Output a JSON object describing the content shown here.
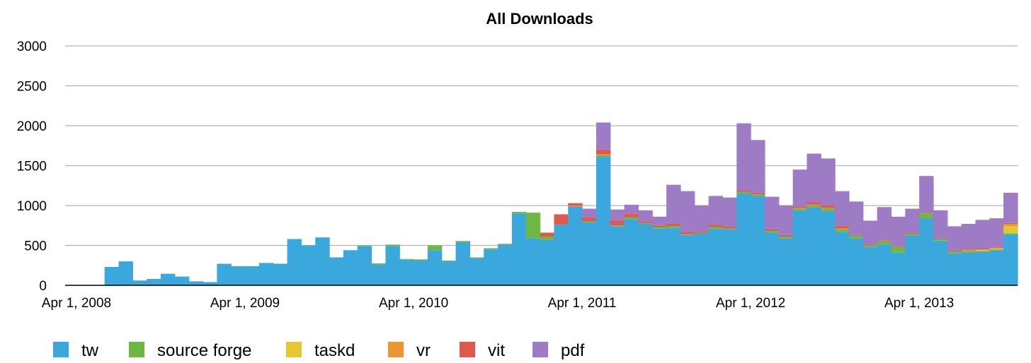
{
  "chart_data": {
    "type": "bar",
    "stacked": true,
    "title": "All Downloads",
    "xlabel": "",
    "ylabel": "",
    "ylim": [
      0,
      3000
    ],
    "yticks": [
      0,
      500,
      1000,
      1500,
      2000,
      2500,
      3000
    ],
    "ytick_labels": [
      "0",
      "500",
      "1000",
      "1500",
      "2000",
      "2500",
      "3000"
    ],
    "xtick_labels": [
      "Apr 1, 2008",
      "Apr 1, 2009",
      "Apr 1, 2010",
      "Apr 1, 2011",
      "Apr 1, 2012",
      "Apr 1, 2013"
    ],
    "xtick_positions": [
      0,
      12,
      24,
      36,
      48,
      60
    ],
    "grid": true,
    "legend_position": "bottom",
    "colors": {
      "tw": "#3aa8dc",
      "source forge": "#6cb842",
      "taskd": "#e2c931",
      "vr": "#ec9535",
      "vit": "#df5a4b",
      "pdf": "#9d7cc5"
    },
    "series": [
      {
        "name": "tw",
        "values": [
          0,
          0,
          230,
          300,
          60,
          80,
          145,
          110,
          50,
          40,
          270,
          240,
          240,
          280,
          270,
          580,
          500,
          600,
          350,
          440,
          490,
          260,
          490,
          320,
          310,
          440,
          300,
          540,
          340,
          450,
          510,
          900,
          590,
          570,
          760,
          990,
          790,
          1610,
          740,
          830,
          770,
          710,
          720,
          630,
          650,
          710,
          700,
          1150,
          1120,
          660,
          590,
          940,
          980,
          930,
          670,
          590,
          480,
          510,
          410,
          620,
          840,
          560,
          400,
          410,
          420,
          440,
          640
        ]
      },
      {
        "name": "source forge",
        "values": [
          0,
          0,
          0,
          0,
          0,
          0,
          0,
          0,
          0,
          0,
          0,
          0,
          0,
          0,
          0,
          0,
          0,
          0,
          0,
          0,
          10,
          15,
          20,
          10,
          15,
          60,
          10,
          15,
          10,
          15,
          10,
          20,
          320,
          40,
          0,
          0,
          10,
          20,
          10,
          20,
          10,
          20,
          20,
          10,
          10,
          20,
          10,
          20,
          20,
          20,
          20,
          20,
          20,
          30,
          30,
          30,
          20,
          40,
          70,
          20,
          60,
          20,
          20,
          20,
          10,
          10,
          10
        ]
      },
      {
        "name": "taskd",
        "values": [
          0,
          0,
          0,
          0,
          0,
          0,
          0,
          0,
          0,
          0,
          0,
          0,
          0,
          0,
          0,
          0,
          0,
          0,
          0,
          0,
          0,
          0,
          0,
          0,
          0,
          0,
          0,
          0,
          0,
          0,
          0,
          0,
          0,
          0,
          0,
          0,
          0,
          0,
          0,
          0,
          0,
          0,
          0,
          0,
          0,
          0,
          0,
          0,
          0,
          0,
          0,
          0,
          0,
          0,
          0,
          0,
          0,
          0,
          0,
          0,
          0,
          0,
          0,
          0,
          10,
          10,
          90
        ]
      },
      {
        "name": "vr",
        "values": [
          0,
          0,
          0,
          0,
          0,
          0,
          0,
          0,
          0,
          0,
          0,
          0,
          0,
          0,
          0,
          0,
          0,
          0,
          0,
          0,
          0,
          0,
          0,
          0,
          0,
          0,
          0,
          0,
          0,
          0,
          0,
          0,
          0,
          0,
          0,
          10,
          0,
          10,
          0,
          0,
          0,
          0,
          0,
          0,
          0,
          0,
          0,
          0,
          0,
          0,
          0,
          10,
          10,
          10,
          10,
          0,
          0,
          0,
          0,
          0,
          0,
          0,
          0,
          10,
          10,
          10,
          30
        ]
      },
      {
        "name": "vit",
        "values": [
          0,
          0,
          0,
          0,
          0,
          0,
          0,
          0,
          0,
          0,
          0,
          0,
          0,
          0,
          0,
          0,
          0,
          0,
          0,
          0,
          0,
          0,
          0,
          0,
          0,
          0,
          0,
          0,
          0,
          0,
          0,
          0,
          0,
          50,
          130,
          30,
          50,
          60,
          60,
          50,
          20,
          20,
          30,
          30,
          20,
          30,
          20,
          20,
          20,
          20,
          20,
          20,
          30,
          30,
          30,
          10,
          10,
          10,
          10,
          10,
          10,
          10,
          10,
          10,
          10,
          10,
          10
        ]
      },
      {
        "name": "pdf",
        "values": [
          0,
          0,
          0,
          0,
          0,
          0,
          0,
          0,
          0,
          0,
          0,
          0,
          0,
          0,
          0,
          0,
          0,
          0,
          0,
          0,
          0,
          0,
          0,
          0,
          0,
          0,
          0,
          0,
          0,
          0,
          0,
          0,
          0,
          0,
          0,
          0,
          110,
          340,
          140,
          110,
          140,
          110,
          490,
          510,
          320,
          360,
          370,
          840,
          660,
          410,
          370,
          460,
          610,
          590,
          440,
          420,
          300,
          420,
          370,
          310,
          460,
          350,
          310,
          320,
          360,
          360,
          380
        ]
      }
    ]
  },
  "legend": {
    "items": [
      {
        "label": "tw",
        "color": "#3aa8dc"
      },
      {
        "label": "source forge",
        "color": "#6cb842"
      },
      {
        "label": "taskd",
        "color": "#e2c931"
      },
      {
        "label": "vr",
        "color": "#ec9535"
      },
      {
        "label": "vit",
        "color": "#df5a4b"
      },
      {
        "label": "pdf",
        "color": "#9d7cc5"
      }
    ]
  }
}
